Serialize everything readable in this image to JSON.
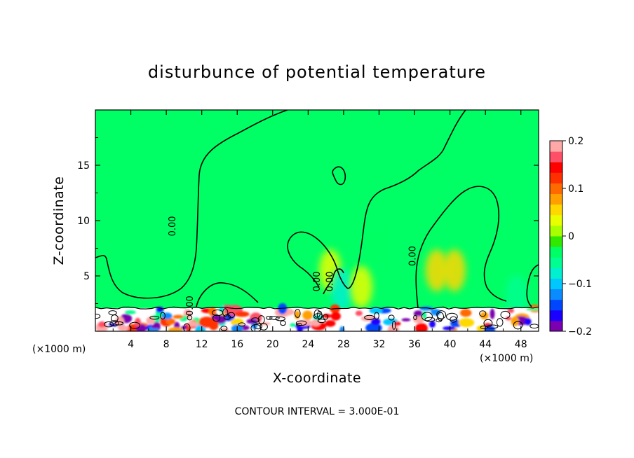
{
  "chart_data": {
    "type": "heatmap",
    "title": "disturbunce of potential temperature",
    "xlabel": "X-coordinate",
    "ylabel": "Z-coordinate",
    "x_unit": "(×1000 m)",
    "y_unit": "(×1000 m)",
    "xlim": [
      0,
      50
    ],
    "ylim": [
      0,
      20
    ],
    "x_ticks": [
      4,
      8,
      12,
      16,
      20,
      24,
      28,
      32,
      36,
      40,
      44,
      48
    ],
    "y_ticks": [
      5,
      10,
      15
    ],
    "colorbar": {
      "min": -0.2,
      "max": 0.2,
      "ticks": [
        0.2,
        0.1,
        0,
        -0.1,
        -0.2
      ],
      "tick_labels": [
        "0.2",
        "0.1",
        "0",
        "−0.1",
        "−0.2"
      ],
      "colors": [
        "#7a00b0",
        "#1a00ff",
        "#0046ff",
        "#0a8cff",
        "#00c8ff",
        "#00f0d0",
        "#00ff90",
        "#00ff64",
        "#30e800",
        "#a8ff00",
        "#e8ff00",
        "#ffd800",
        "#ffa000",
        "#ff6a00",
        "#ff3000",
        "#ff0000",
        "#ff5068",
        "#ffa8a8"
      ]
    },
    "contour_labels": [
      {
        "text": "0.00",
        "x": 9.0,
        "y": 9.5
      },
      {
        "text": "0.00",
        "x": 11.0,
        "y": 2.3
      },
      {
        "text": "0.00",
        "x": 25.3,
        "y": 4.5
      },
      {
        "text": "0.00",
        "x": 26.8,
        "y": 4.5
      },
      {
        "text": "0.00",
        "x": 36.1,
        "y": 6.8
      }
    ],
    "contour_interval": "CONTOUR INTERVAL = 3.000E-01",
    "background_value": 0.0,
    "anomalies": [
      {
        "x": 26.5,
        "z": 5.5,
        "value": 0.04
      },
      {
        "x": 27.8,
        "z": 3.8,
        "value": -0.08
      },
      {
        "x": 31.5,
        "z": 7.5,
        "value": -0.03
      },
      {
        "x": 30.0,
        "z": 4.0,
        "value": 0.03
      },
      {
        "x": 38.5,
        "z": 5.5,
        "value": 0.05
      },
      {
        "x": 40.5,
        "z": 5.5,
        "value": 0.06
      },
      {
        "x": 47.5,
        "z": 3.2,
        "value": -0.05
      },
      {
        "x": 4.0,
        "z": 2.5,
        "value": -0.04
      }
    ],
    "grid": false
  }
}
